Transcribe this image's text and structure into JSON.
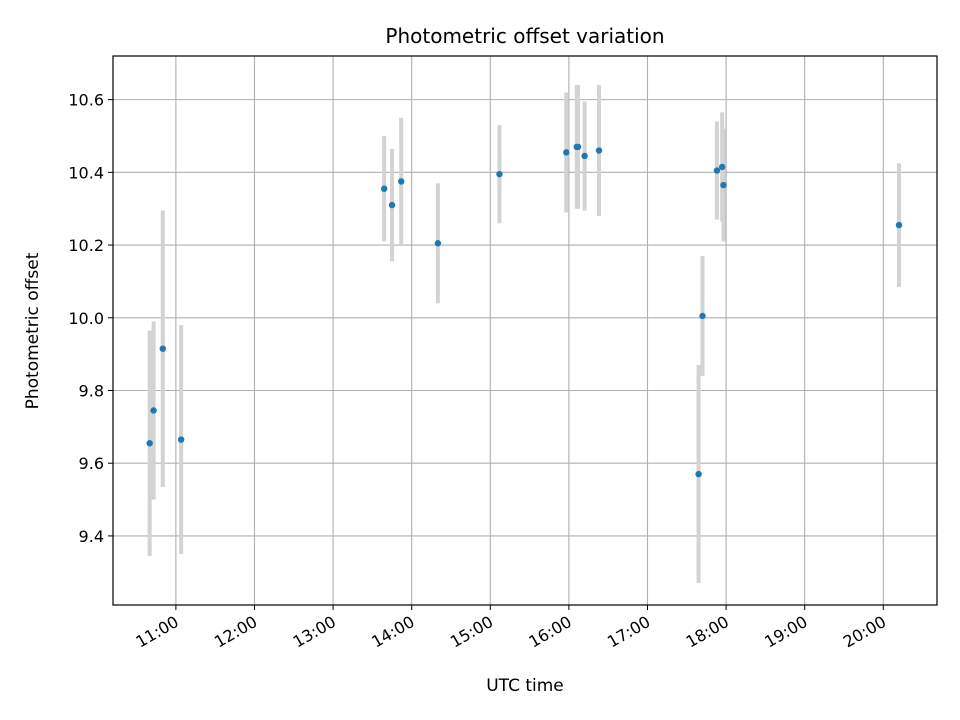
{
  "chart_data": {
    "type": "scatter",
    "title": "Photometric offset variation",
    "xlabel": "UTC time",
    "ylabel": "Photometric offset",
    "x_axis_type": "time",
    "xlim": [
      "10:12",
      "20:41"
    ],
    "ylim": [
      9.21,
      10.72
    ],
    "x_ticks": [
      "11:00",
      "12:00",
      "13:00",
      "14:00",
      "15:00",
      "16:00",
      "17:00",
      "18:00",
      "19:00",
      "20:00"
    ],
    "y_ticks": [
      9.4,
      9.6,
      9.8,
      10.0,
      10.2,
      10.4,
      10.6
    ],
    "grid": true,
    "point_color": "#1f77b4",
    "errorbar_color": "#d3d3d3",
    "series": [
      {
        "points": [
          {
            "x": "10:40",
            "y": 9.655,
            "err": 0.31
          },
          {
            "x": "10:43",
            "y": 9.745,
            "err": 0.245
          },
          {
            "x": "10:50",
            "y": 9.915,
            "err": 0.38
          },
          {
            "x": "11:04",
            "y": 9.665,
            "err": 0.315
          },
          {
            "x": "13:39",
            "y": 10.355,
            "err": 0.145
          },
          {
            "x": "13:45",
            "y": 10.31,
            "err": 0.155
          },
          {
            "x": "13:52",
            "y": 10.375,
            "err": 0.175
          },
          {
            "x": "14:20",
            "y": 10.205,
            "err": 0.165
          },
          {
            "x": "15:07",
            "y": 10.395,
            "err": 0.135
          },
          {
            "x": "15:58",
            "y": 10.455,
            "err": 0.165
          },
          {
            "x": "16:06",
            "y": 10.47,
            "err": 0.17
          },
          {
            "x": "16:07",
            "y": 10.47,
            "err": 0.17
          },
          {
            "x": "16:12",
            "y": 10.445,
            "err": 0.15
          },
          {
            "x": "16:23",
            "y": 10.46,
            "err": 0.18
          },
          {
            "x": "17:39",
            "y": 9.57,
            "err": 0.3
          },
          {
            "x": "17:42",
            "y": 10.005,
            "err": 0.165
          },
          {
            "x": "17:53",
            "y": 10.405,
            "err": 0.135
          },
          {
            "x": "17:57",
            "y": 10.415,
            "err": 0.15
          },
          {
            "x": "17:58",
            "y": 10.365,
            "err": 0.155
          },
          {
            "x": "20:12",
            "y": 10.255,
            "err": 0.17
          }
        ]
      }
    ]
  }
}
